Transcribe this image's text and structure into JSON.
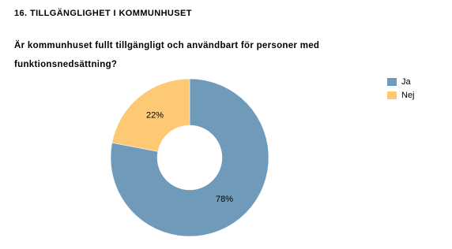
{
  "chart_data": {
    "type": "donut",
    "title": "16. TILLGÄNGLIGHET I KOMMUNHUSET",
    "subtitle": "Är kommunhuset fullt tillgängligt och användbart för personer med funktionsnedsättning?",
    "categories": [
      "Ja",
      "Nej"
    ],
    "values": [
      78,
      22
    ],
    "value_labels": [
      "78%",
      "22%"
    ],
    "colors": [
      "#6f9aba",
      "#fdc974"
    ],
    "legend": "right"
  }
}
